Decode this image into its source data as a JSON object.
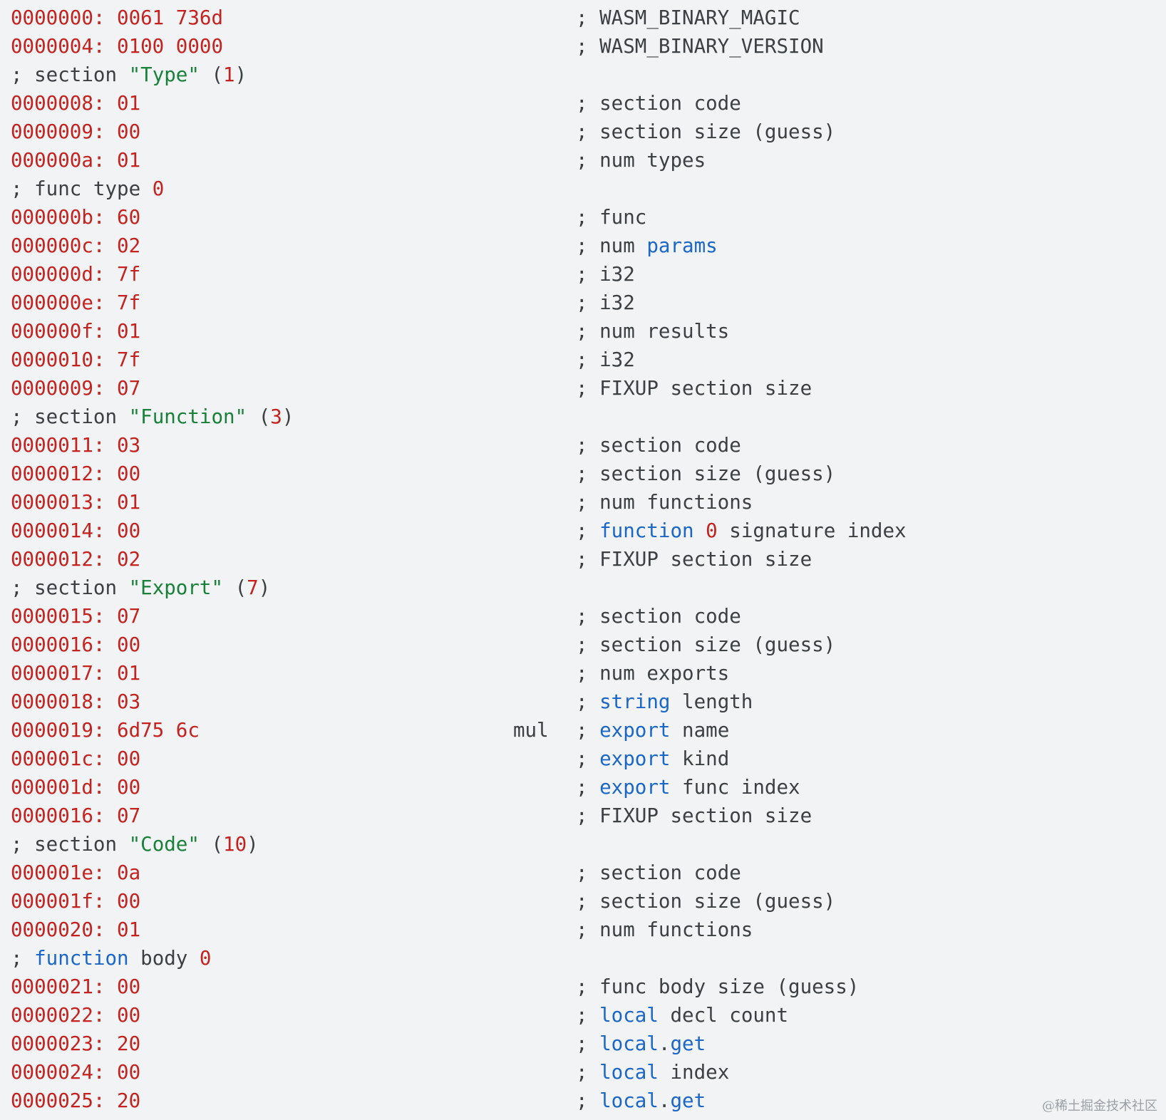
{
  "colors": {
    "red": "#c5221f",
    "green": "#188038",
    "blue": "#1a66c9",
    "gray": "#3c4043",
    "background": "#f1f3f4"
  },
  "rows": [
    {
      "left": [
        [
          "0000000: 0061 736d",
          "red"
        ]
      ],
      "comment": [
        [
          "; WASM_BINARY_MAGIC",
          "gray"
        ]
      ]
    },
    {
      "left": [
        [
          "0000004: 0100 0000",
          "red"
        ]
      ],
      "comment": [
        [
          "; WASM_BINARY_VERSION",
          "gray"
        ]
      ]
    },
    {
      "left": [
        [
          "; section ",
          "gray"
        ],
        [
          "\"Type\"",
          "green"
        ],
        [
          " (",
          "gray"
        ],
        [
          "1",
          "red"
        ],
        [
          ")",
          "gray"
        ]
      ]
    },
    {
      "left": [
        [
          "0000008: 01",
          "red"
        ]
      ],
      "comment": [
        [
          "; section code",
          "gray"
        ]
      ]
    },
    {
      "left": [
        [
          "0000009: 00",
          "red"
        ]
      ],
      "comment": [
        [
          "; section size (guess)",
          "gray"
        ]
      ]
    },
    {
      "left": [
        [
          "000000a: 01",
          "red"
        ]
      ],
      "comment": [
        [
          "; num types",
          "gray"
        ]
      ]
    },
    {
      "left": [
        [
          "; func type ",
          "gray"
        ],
        [
          "0",
          "red"
        ]
      ]
    },
    {
      "left": [
        [
          "000000b: 60",
          "red"
        ]
      ],
      "comment": [
        [
          "; func",
          "gray"
        ]
      ]
    },
    {
      "left": [
        [
          "000000c: 02",
          "red"
        ]
      ],
      "comment": [
        [
          "; num ",
          "gray"
        ],
        [
          "params",
          "blue"
        ]
      ]
    },
    {
      "left": [
        [
          "000000d: 7f",
          "red"
        ]
      ],
      "comment": [
        [
          "; i32",
          "gray"
        ]
      ]
    },
    {
      "left": [
        [
          "000000e: 7f",
          "red"
        ]
      ],
      "comment": [
        [
          "; i32",
          "gray"
        ]
      ]
    },
    {
      "left": [
        [
          "000000f: 01",
          "red"
        ]
      ],
      "comment": [
        [
          "; num results",
          "gray"
        ]
      ]
    },
    {
      "left": [
        [
          "0000010: 7f",
          "red"
        ]
      ],
      "comment": [
        [
          "; i32",
          "gray"
        ]
      ]
    },
    {
      "left": [
        [
          "0000009: 07",
          "red"
        ]
      ],
      "comment": [
        [
          "; FIXUP section size",
          "gray"
        ]
      ]
    },
    {
      "left": [
        [
          "; section ",
          "gray"
        ],
        [
          "\"Function\"",
          "green"
        ],
        [
          " (",
          "gray"
        ],
        [
          "3",
          "red"
        ],
        [
          ")",
          "gray"
        ]
      ]
    },
    {
      "left": [
        [
          "0000011: 03",
          "red"
        ]
      ],
      "comment": [
        [
          "; section code",
          "gray"
        ]
      ]
    },
    {
      "left": [
        [
          "0000012: 00",
          "red"
        ]
      ],
      "comment": [
        [
          "; section size (guess)",
          "gray"
        ]
      ]
    },
    {
      "left": [
        [
          "0000013: 01",
          "red"
        ]
      ],
      "comment": [
        [
          "; num functions",
          "gray"
        ]
      ]
    },
    {
      "left": [
        [
          "0000014: 00",
          "red"
        ]
      ],
      "comment": [
        [
          "; ",
          "gray"
        ],
        [
          "function",
          "blue"
        ],
        [
          " ",
          "gray"
        ],
        [
          "0",
          "red"
        ],
        [
          " signature index",
          "gray"
        ]
      ]
    },
    {
      "left": [
        [
          "0000012: 02",
          "red"
        ]
      ],
      "comment": [
        [
          "; FIXUP section size",
          "gray"
        ]
      ]
    },
    {
      "left": [
        [
          "; section ",
          "gray"
        ],
        [
          "\"Export\"",
          "green"
        ],
        [
          " (",
          "gray"
        ],
        [
          "7",
          "red"
        ],
        [
          ")",
          "gray"
        ]
      ]
    },
    {
      "left": [
        [
          "0000015: 07",
          "red"
        ]
      ],
      "comment": [
        [
          "; section code",
          "gray"
        ]
      ]
    },
    {
      "left": [
        [
          "0000016: 00",
          "red"
        ]
      ],
      "comment": [
        [
          "; section size (guess)",
          "gray"
        ]
      ]
    },
    {
      "left": [
        [
          "0000017: 01",
          "red"
        ]
      ],
      "comment": [
        [
          "; num exports",
          "gray"
        ]
      ]
    },
    {
      "left": [
        [
          "0000018: 03",
          "red"
        ]
      ],
      "comment": [
        [
          "; ",
          "gray"
        ],
        [
          "string",
          "blue"
        ],
        [
          " length",
          "gray"
        ]
      ]
    },
    {
      "left": [
        [
          "0000019: 6d75 6c",
          "red"
        ]
      ],
      "text": "mul",
      "comment": [
        [
          "; ",
          "gray"
        ],
        [
          "export",
          "blue"
        ],
        [
          " name",
          "gray"
        ]
      ]
    },
    {
      "left": [
        [
          "000001c: 00",
          "red"
        ]
      ],
      "comment": [
        [
          "; ",
          "gray"
        ],
        [
          "export",
          "blue"
        ],
        [
          " kind",
          "gray"
        ]
      ]
    },
    {
      "left": [
        [
          "000001d: 00",
          "red"
        ]
      ],
      "comment": [
        [
          "; ",
          "gray"
        ],
        [
          "export",
          "blue"
        ],
        [
          " func index",
          "gray"
        ]
      ]
    },
    {
      "left": [
        [
          "0000016: 07",
          "red"
        ]
      ],
      "comment": [
        [
          "; FIXUP section size",
          "gray"
        ]
      ]
    },
    {
      "left": [
        [
          "; section ",
          "gray"
        ],
        [
          "\"Code\"",
          "green"
        ],
        [
          " (",
          "gray"
        ],
        [
          "10",
          "red"
        ],
        [
          ")",
          "gray"
        ]
      ]
    },
    {
      "left": [
        [
          "000001e: 0a",
          "red"
        ]
      ],
      "comment": [
        [
          "; section code",
          "gray"
        ]
      ]
    },
    {
      "left": [
        [
          "000001f: 00",
          "red"
        ]
      ],
      "comment": [
        [
          "; section size (guess)",
          "gray"
        ]
      ]
    },
    {
      "left": [
        [
          "0000020: 01",
          "red"
        ]
      ],
      "comment": [
        [
          "; num functions",
          "gray"
        ]
      ]
    },
    {
      "left": [
        [
          "; ",
          "gray"
        ],
        [
          "function",
          "blue"
        ],
        [
          " body ",
          "gray"
        ],
        [
          "0",
          "red"
        ]
      ]
    },
    {
      "left": [
        [
          "0000021: 00",
          "red"
        ]
      ],
      "comment": [
        [
          "; func body size (guess)",
          "gray"
        ]
      ]
    },
    {
      "left": [
        [
          "0000022: 00",
          "red"
        ]
      ],
      "comment": [
        [
          "; ",
          "gray"
        ],
        [
          "local",
          "blue"
        ],
        [
          " decl count",
          "gray"
        ]
      ]
    },
    {
      "left": [
        [
          "0000023: 20",
          "red"
        ]
      ],
      "comment": [
        [
          "; ",
          "gray"
        ],
        [
          "local",
          "blue"
        ],
        [
          ".",
          "gray"
        ],
        [
          "get",
          "blue"
        ]
      ]
    },
    {
      "left": [
        [
          "0000024: 00",
          "red"
        ]
      ],
      "comment": [
        [
          "; ",
          "gray"
        ],
        [
          "local",
          "blue"
        ],
        [
          " index",
          "gray"
        ]
      ]
    },
    {
      "left": [
        [
          "0000025: 20",
          "red"
        ]
      ],
      "comment": [
        [
          "; ",
          "gray"
        ],
        [
          "local",
          "blue"
        ],
        [
          ".",
          "gray"
        ],
        [
          "get",
          "blue"
        ]
      ]
    }
  ],
  "watermark": "@稀土掘金技术社区"
}
